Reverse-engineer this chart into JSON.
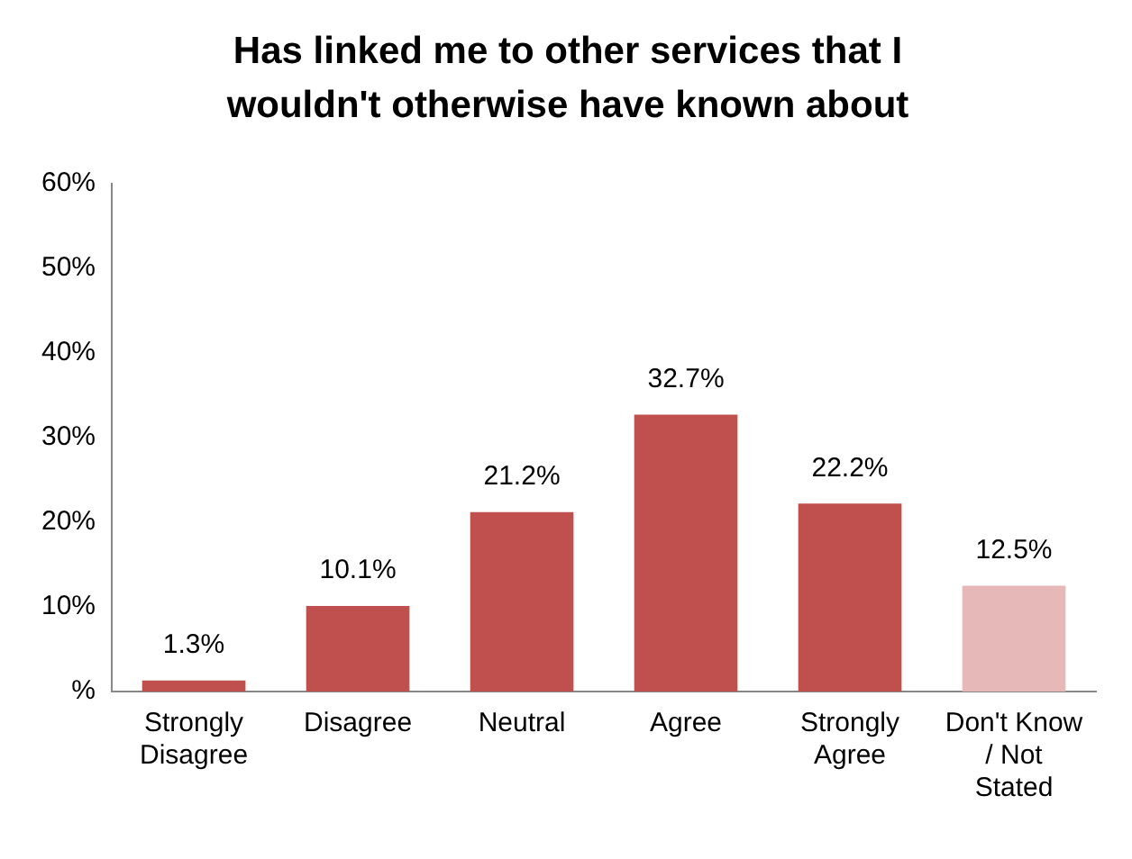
{
  "chart_data": {
    "type": "bar",
    "title": "Has linked me to other services that I wouldn't otherwise have known about",
    "categories": [
      "Strongly Disagree",
      "Disagree",
      "Neutral",
      "Agree",
      "Strongly Agree",
      "Don't Know / Not Stated"
    ],
    "values": [
      1.3,
      10.1,
      21.2,
      32.7,
      22.2,
      12.5
    ],
    "colors": [
      "#c0504d",
      "#c0504d",
      "#c0504d",
      "#c0504d",
      "#c0504d",
      "#e6b9b8"
    ],
    "value_labels": [
      "1.3%",
      "10.1%",
      "21.2%",
      "32.7%",
      "22.2%",
      "12.5%"
    ],
    "ylim": [
      0,
      60
    ],
    "yticks": [
      {
        "value": 0,
        "label": "%"
      },
      {
        "value": 10,
        "label": "10%"
      },
      {
        "value": 20,
        "label": "20%"
      },
      {
        "value": 30,
        "label": "30%"
      },
      {
        "value": 40,
        "label": "40%"
      },
      {
        "value": 50,
        "label": "50%"
      },
      {
        "value": 60,
        "label": "60%"
      }
    ],
    "grid": false,
    "legend": false
  }
}
